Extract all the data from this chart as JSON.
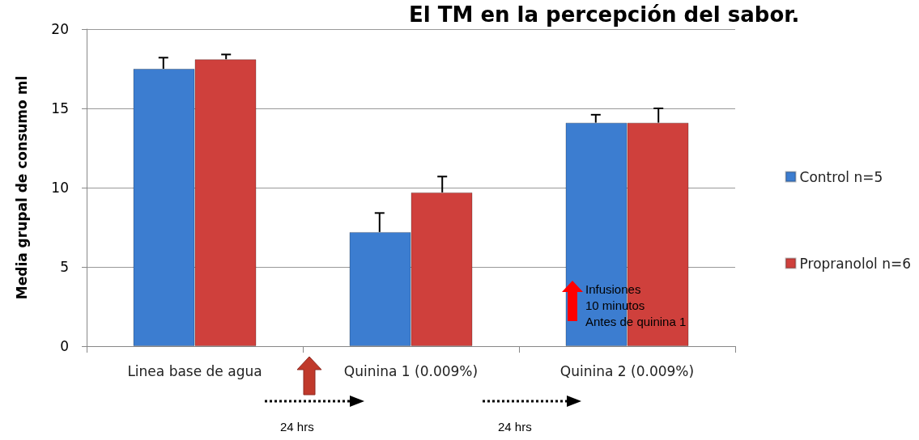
{
  "chart_data": {
    "type": "bar",
    "title": "El TM en la percepción del sabor.",
    "ylabel": "Media grupal de consumo ml",
    "categories": [
      "Linea base de agua",
      "Quinina 1 (0.009%)",
      "Quinina 2 (0.009%)"
    ],
    "series": [
      {
        "name": "Control n=5",
        "color": "#3c7dd0",
        "values": [
          17.5,
          7.2,
          14.1
        ],
        "errors": [
          [
            17.5,
            18.2
          ],
          [
            7.2,
            8.4
          ],
          [
            14.1,
            14.6
          ]
        ]
      },
      {
        "name": "Propranolol n=6",
        "color": "#cf403c",
        "values": [
          18.1,
          9.7,
          14.1
        ],
        "errors": [
          [
            18.1,
            18.4
          ],
          [
            9.7,
            10.7
          ],
          [
            14.1,
            15.0
          ]
        ]
      }
    ],
    "ylim": [
      0,
      20
    ],
    "yticks": [
      0,
      5,
      10,
      15,
      20
    ],
    "grid": "y",
    "legend": "right",
    "annotations": [
      "Infusiones\n10 minutos\nAntes de quinina 1",
      "24 hrs",
      "24 hrs"
    ]
  }
}
